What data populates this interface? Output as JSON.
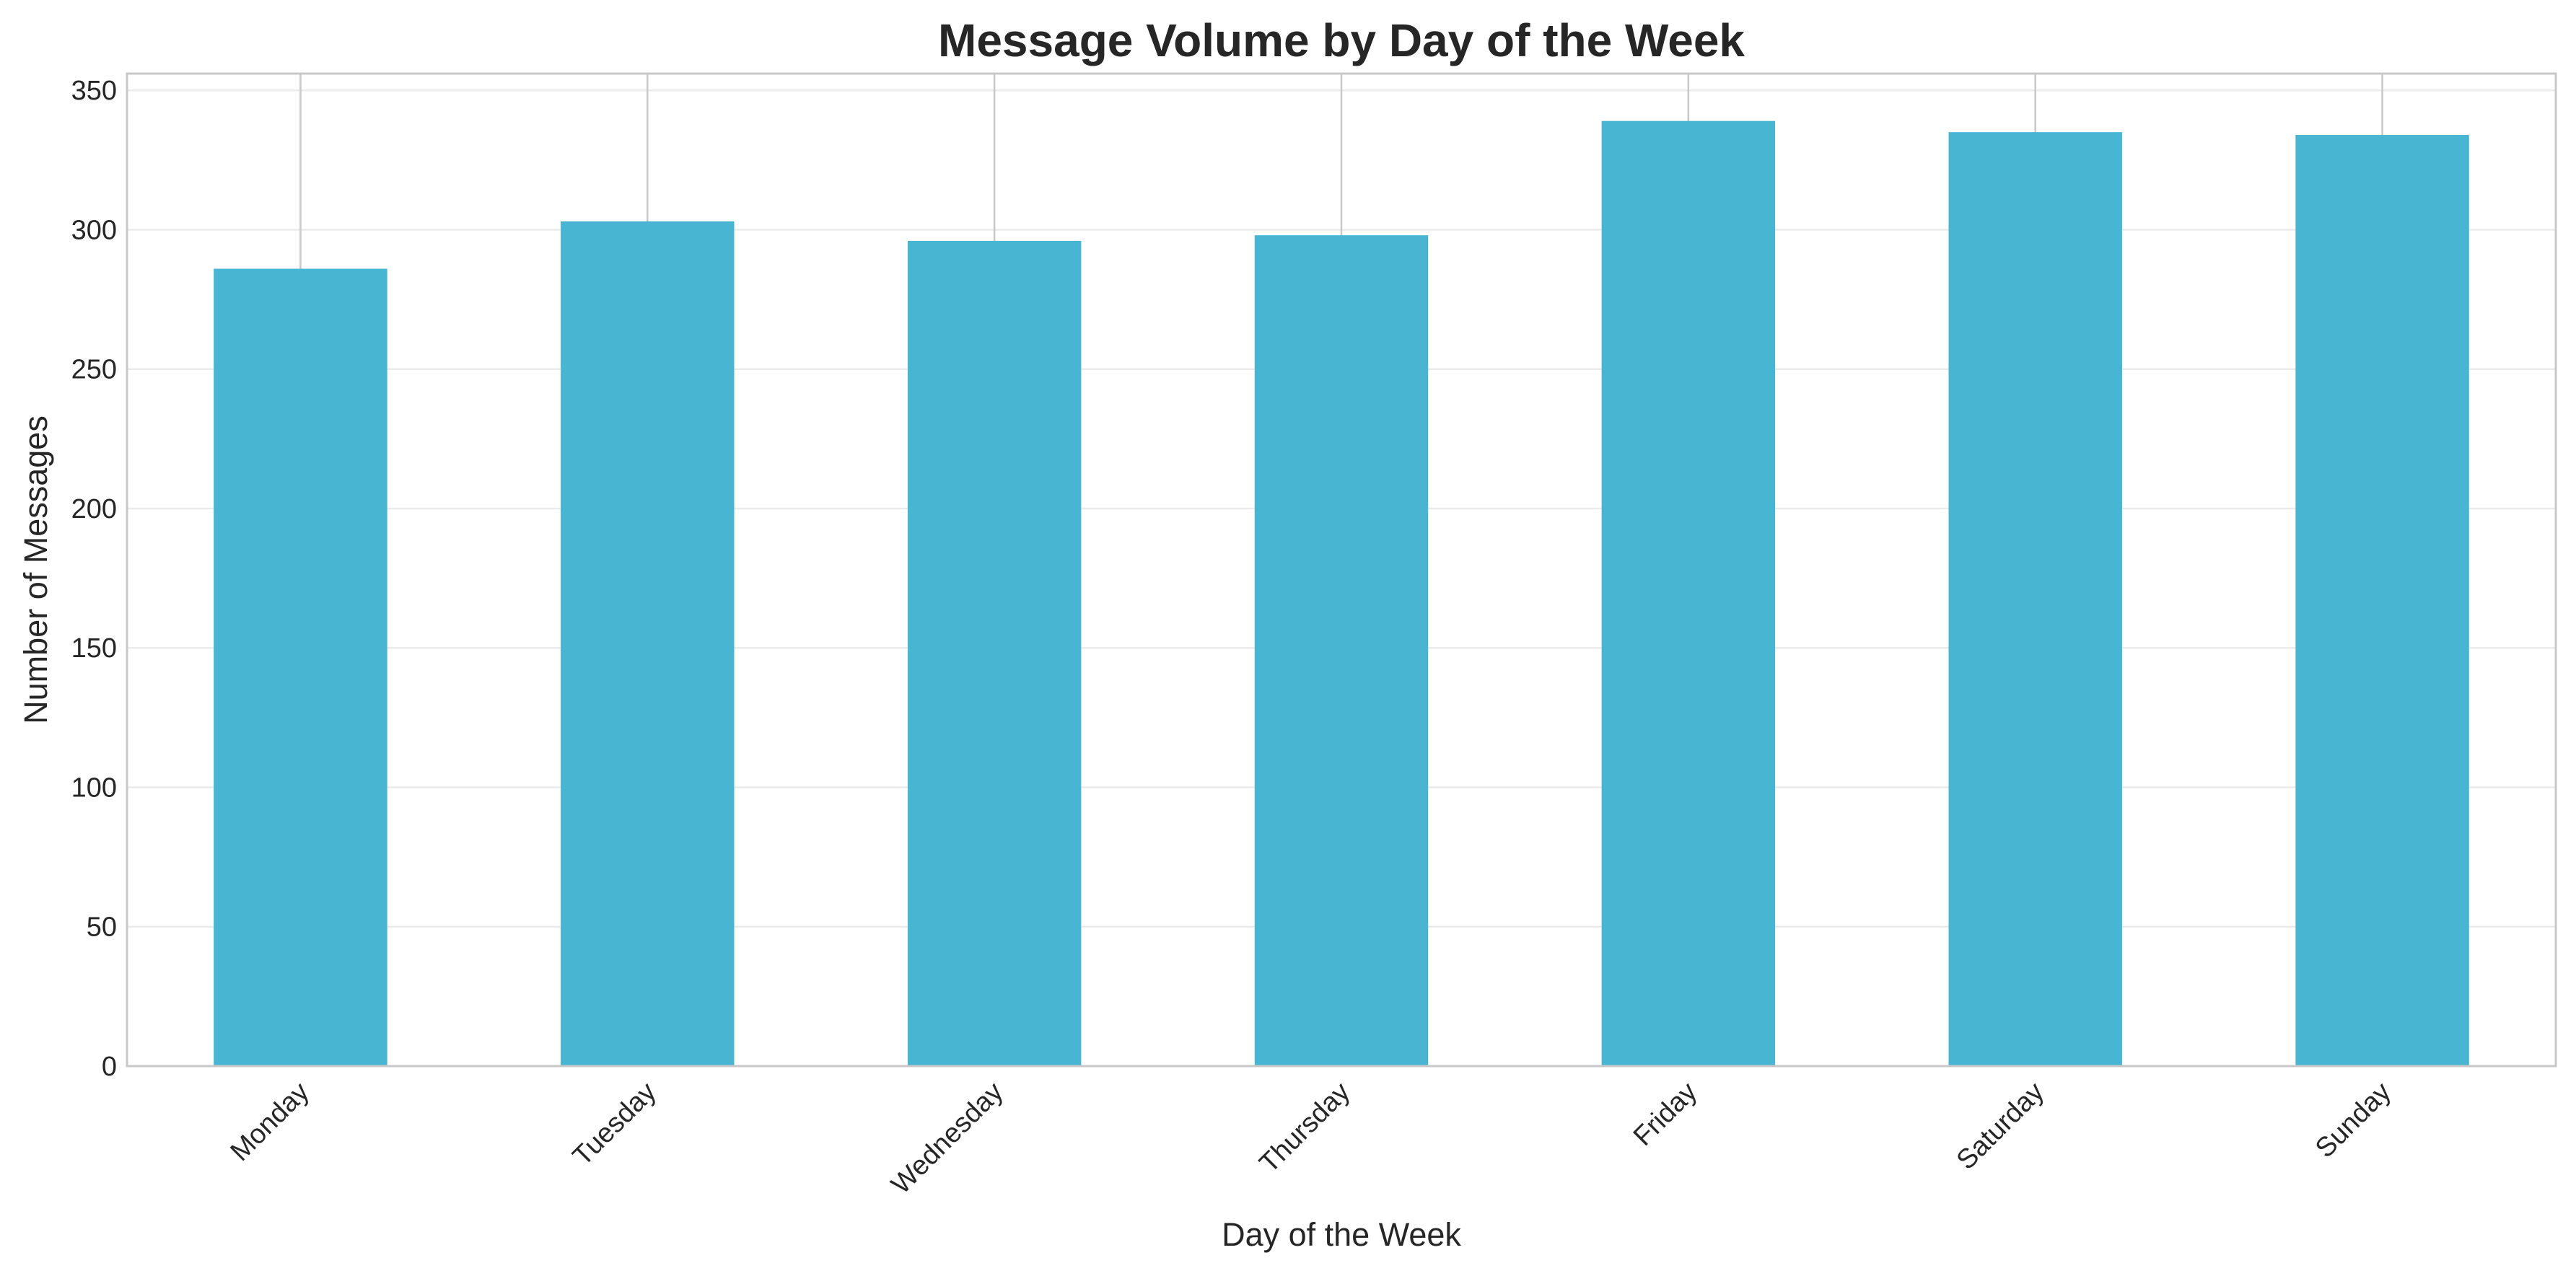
{
  "chart_data": {
    "type": "bar",
    "title": "Message Volume by Day of the Week",
    "xlabel": "Day of the Week",
    "ylabel": "Number of Messages",
    "categories": [
      "Monday",
      "Tuesday",
      "Wednesday",
      "Thursday",
      "Friday",
      "Saturday",
      "Sunday"
    ],
    "values": [
      286,
      303,
      296,
      298,
      339,
      335,
      334
    ],
    "ylim": [
      0,
      356
    ],
    "yticks": [
      0,
      50,
      100,
      150,
      200,
      250,
      300,
      350
    ],
    "ytick_labels": [
      "0",
      "50",
      "100",
      "150",
      "200",
      "250",
      "300",
      "350"
    ],
    "xtick_rotation_deg": 45,
    "grid": true,
    "legend": "none",
    "colors": {
      "bar": "#48b5d2",
      "grid": "#ebebeb",
      "spine": "#c8c8c8",
      "text": "#262626",
      "background": "#ffffff"
    }
  }
}
